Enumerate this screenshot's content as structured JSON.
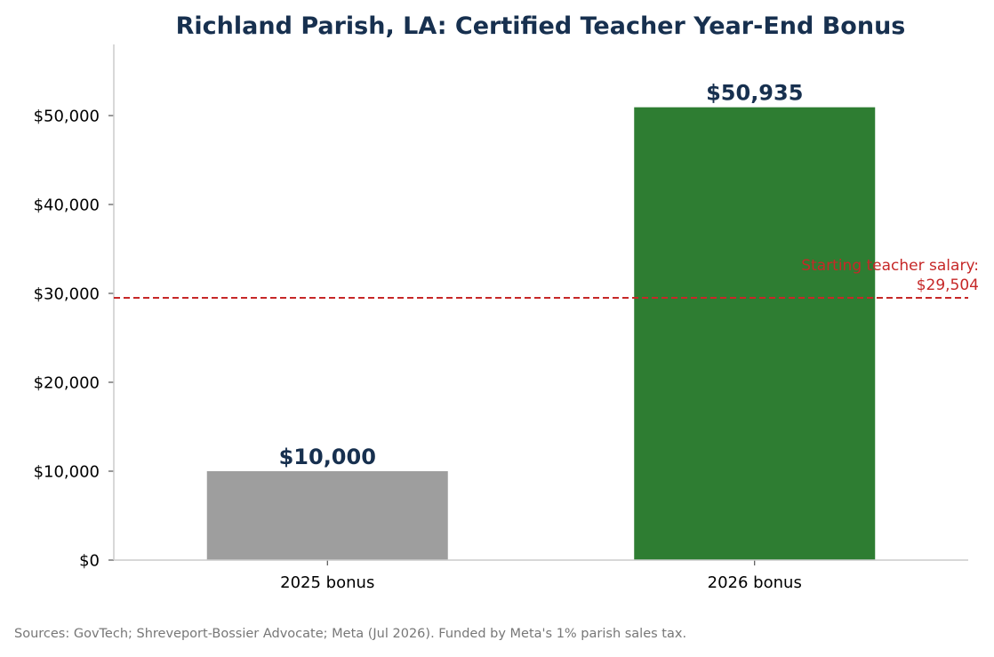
{
  "chart_data": {
    "type": "bar",
    "title": "Richland Parish, LA: Certified Teacher Year-End Bonus",
    "categories": [
      "2025 bonus",
      "2026 bonus"
    ],
    "values": [
      10000,
      50935
    ],
    "value_labels": [
      "$10,000",
      "$50,935"
    ],
    "bar_colors": [
      "#9e9e9e",
      "#2e7d32"
    ],
    "ylim": [
      0,
      58000
    ],
    "yticks": [
      0,
      10000,
      20000,
      30000,
      40000,
      50000
    ],
    "ytick_labels": [
      "$0",
      "$10,000",
      "$20,000",
      "$30,000",
      "$40,000",
      "$50,000"
    ],
    "xlabel": "",
    "ylabel": "",
    "grid": false,
    "reference_line": {
      "value": 29504,
      "label_line1": "Starting teacher salary:",
      "label_line2": "$29,504",
      "color": "#c62828",
      "style": "dashed"
    },
    "title_color": "#17304f",
    "value_label_color": "#17304f"
  },
  "footer": {
    "source_note": "Sources: GovTech; Shreveport-Bossier Advocate; Meta (Jul 2026). Funded by Meta's 1% parish sales tax."
  }
}
